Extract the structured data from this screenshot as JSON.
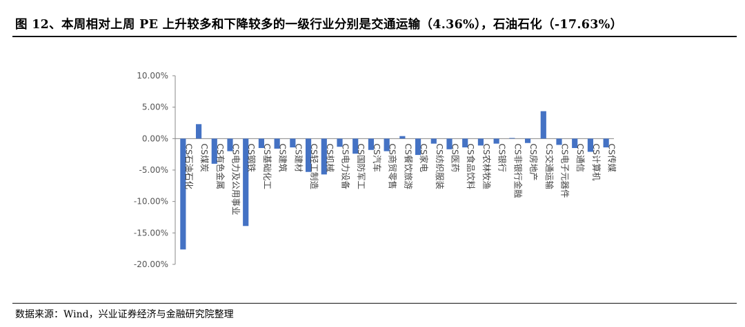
{
  "header": {
    "title": "图 12、本周相对上周 PE 上升较多和下降较多的一级行业分别是交通运输（4.36%），石油石化（-17.63%）"
  },
  "footer": {
    "source": "数据来源：Wind，兴业证券经济与金融研究院整理"
  },
  "chart_data": {
    "type": "bar",
    "title": "",
    "xlabel": "",
    "ylabel": "",
    "ylim": [
      -20,
      10
    ],
    "yticks": [
      "10.00%",
      "5.00%",
      "0.00%",
      "-5.00%",
      "-10.00%",
      "-15.00%",
      "-20.00%"
    ],
    "grid": false,
    "legend": "none",
    "bar_color": "#4472c4",
    "categories": [
      "CS石油石化",
      "CS煤炭",
      "CS有色金属",
      "CS电力及公用事业",
      "CS钢铁",
      "CS基础化工",
      "CS建筑",
      "CS建材",
      "CS轻工制造",
      "CS机械",
      "CS电力设备",
      "CS国防军工",
      "CS汽车",
      "CS商贸零售",
      "CS餐饮旅游",
      "CS家电",
      "CS纺织服装",
      "CS医药",
      "CS食品饮料",
      "CS农林牧渔",
      "CS银行",
      "CS非银行金融",
      "CS房地产",
      "CS交通运输",
      "CS电子元器件",
      "CS通信",
      "CS计算机",
      "CS传媒"
    ],
    "values": [
      -17.63,
      2.3,
      -4.0,
      -2.0,
      -13.9,
      -1.5,
      -1.6,
      -1.4,
      -5.3,
      -5.7,
      -1.3,
      -2.4,
      -1.8,
      -2.0,
      0.4,
      -2.6,
      -0.8,
      -1.7,
      -1.4,
      -1.1,
      -0.8,
      0.1,
      -0.7,
      4.36,
      -1.0,
      -1.5,
      -2.1,
      -1.4
    ]
  }
}
